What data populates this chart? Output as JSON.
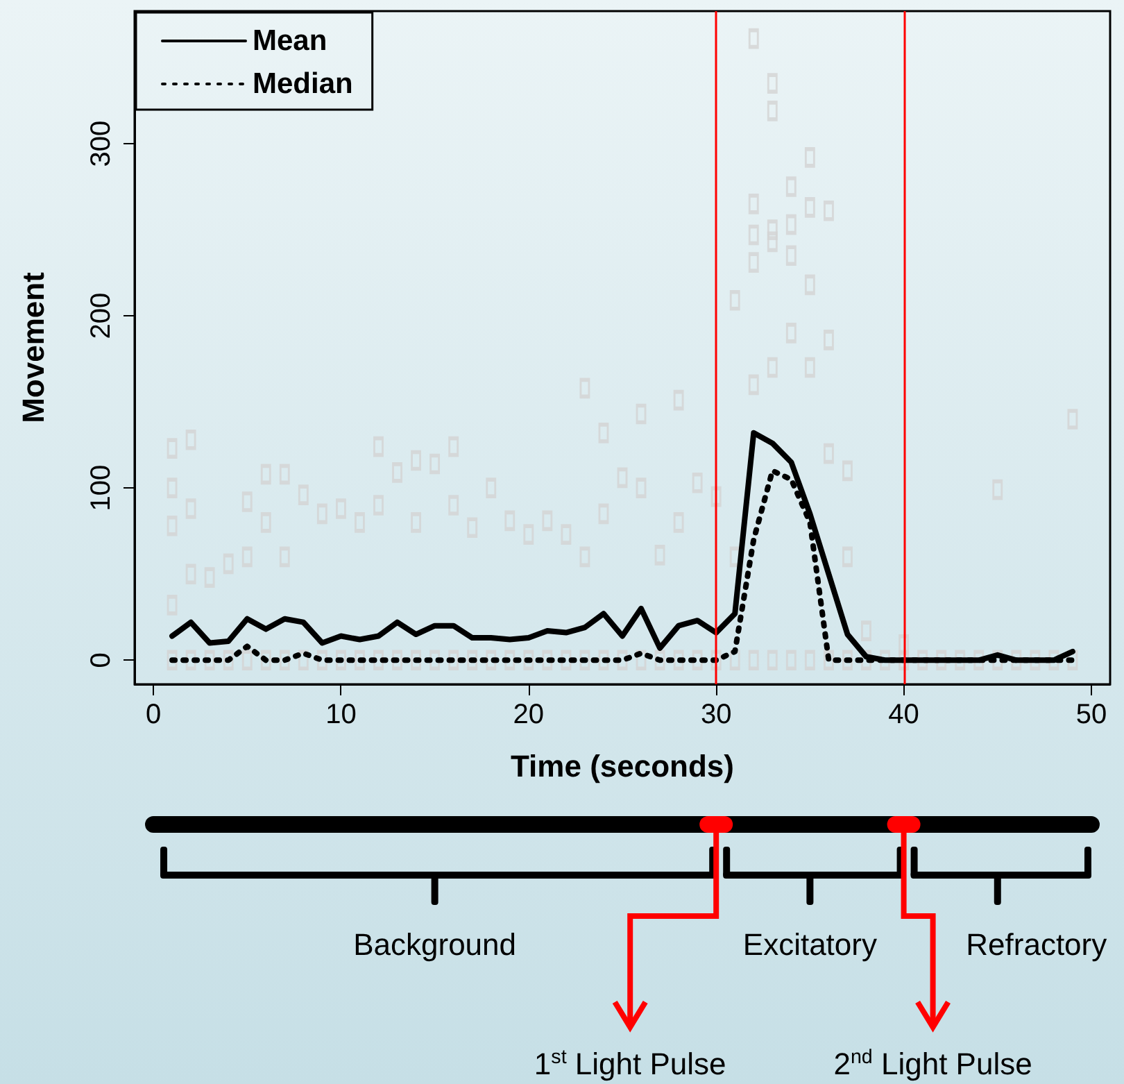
{
  "chart_data": {
    "type": "line",
    "xlabel": "Time (seconds)",
    "ylabel": "Movement",
    "xlim": [
      -1,
      51
    ],
    "xticks": [
      0,
      10,
      20,
      30,
      40,
      50
    ],
    "ylim": [
      -14,
      377
    ],
    "yticks": [
      0,
      100,
      200,
      300
    ],
    "legend": "top left",
    "marker": "none",
    "series": [
      {
        "type": "scatter",
        "marker": "square",
        "color": "#d3d3d3",
        "x": [
          1,
          1,
          1,
          1,
          2,
          2,
          2,
          3,
          4,
          5,
          5,
          6,
          6,
          7,
          7,
          8,
          9,
          10,
          11,
          12,
          12,
          13,
          14,
          14,
          15,
          16,
          16,
          17,
          18,
          19,
          20,
          21,
          22,
          23,
          23,
          24,
          24,
          25,
          26,
          26,
          27,
          28,
          28,
          29,
          30,
          31,
          31,
          32,
          32,
          32,
          32,
          32,
          33,
          33,
          33,
          33,
          33,
          34,
          34,
          34,
          34,
          35,
          35,
          35,
          35,
          36,
          36,
          36,
          37,
          37,
          38,
          40,
          45,
          49,
          1,
          2,
          3,
          4,
          5,
          6,
          7,
          8,
          9,
          10,
          11,
          12,
          13,
          14,
          15,
          16,
          17,
          18,
          19,
          20,
          21,
          22,
          23,
          24,
          25,
          26,
          27,
          28,
          29,
          30,
          31,
          32,
          33,
          34,
          35,
          36,
          37,
          38,
          39,
          40,
          41,
          42,
          43,
          44,
          45,
          46,
          47,
          48,
          49
        ],
        "values": [
          123,
          100,
          78,
          32,
          128,
          88,
          50,
          48,
          56,
          92,
          60,
          108,
          80,
          108,
          60,
          96,
          85,
          88,
          80,
          124,
          90,
          109,
          116,
          80,
          114,
          124,
          90,
          77,
          100,
          81,
          73,
          81,
          73,
          158,
          60,
          132,
          85,
          106,
          143,
          100,
          61,
          151,
          80,
          103,
          95,
          209,
          60,
          361,
          265,
          247,
          231,
          160,
          335,
          319,
          250,
          243,
          170,
          275,
          253,
          235,
          190,
          292,
          263,
          218,
          170,
          261,
          186,
          120,
          110,
          60,
          17,
          9,
          99,
          140,
          0,
          0,
          0,
          0,
          0,
          0,
          0,
          0,
          0,
          0,
          0,
          0,
          0,
          0,
          0,
          0,
          0,
          0,
          0,
          0,
          0,
          0,
          0,
          0,
          0,
          0,
          0,
          0,
          0,
          0,
          0,
          0,
          0,
          0,
          0,
          0,
          0,
          0,
          0,
          0,
          0,
          0,
          0,
          0,
          0,
          0,
          0,
          0,
          0
        ]
      },
      {
        "name": "Mean",
        "color": "#000000",
        "line_style": "solid",
        "x": [
          1,
          2,
          3,
          4,
          5,
          6,
          7,
          8,
          9,
          10,
          11,
          12,
          13,
          14,
          15,
          16,
          17,
          18,
          19,
          20,
          21,
          22,
          23,
          24,
          25,
          26,
          27,
          28,
          29,
          30,
          31,
          32,
          33,
          34,
          35,
          36,
          37,
          38,
          39,
          40,
          41,
          42,
          43,
          44,
          45,
          46,
          47,
          48,
          49
        ],
        "values": [
          14,
          22,
          10,
          11,
          24,
          18,
          24,
          22,
          10,
          14,
          12,
          14,
          22,
          15,
          20,
          20,
          13,
          13,
          12,
          13,
          17,
          16,
          19,
          27,
          14,
          30,
          7,
          20,
          23,
          16,
          27,
          132,
          126,
          115,
          85,
          50,
          15,
          2,
          0,
          0,
          0,
          0,
          0,
          0,
          3,
          0,
          0,
          0,
          5
        ]
      },
      {
        "name": "Median",
        "color": "#000000",
        "line_style": "dotted",
        "x": [
          1,
          2,
          3,
          4,
          5,
          6,
          7,
          8,
          9,
          10,
          11,
          12,
          13,
          14,
          15,
          16,
          17,
          18,
          19,
          20,
          21,
          22,
          23,
          24,
          25,
          26,
          27,
          28,
          29,
          30,
          31,
          32,
          33,
          34,
          35,
          36,
          37,
          38,
          39,
          40,
          41,
          42,
          43,
          44,
          45,
          46,
          47,
          48,
          49
        ],
        "values": [
          0,
          0,
          0,
          0,
          8,
          0,
          0,
          4,
          0,
          0,
          0,
          0,
          0,
          0,
          0,
          0,
          0,
          0,
          0,
          0,
          0,
          0,
          0,
          0,
          0,
          4,
          0,
          0,
          0,
          0,
          5,
          70,
          110,
          105,
          80,
          0,
          0,
          0,
          0,
          0,
          0,
          0,
          0,
          0,
          0,
          0,
          0,
          0,
          0
        ]
      }
    ],
    "ref_lines": [
      {
        "axis": "x",
        "value": 30,
        "color": "#ff0000"
      },
      {
        "axis": "x",
        "value": 40,
        "color": "#ff0000"
      }
    ],
    "annotations": [
      "Background",
      "Excitatory",
      "Refractory",
      "1$^{st}$ Light Pulse",
      "2$^{nd}$ Light Pulse"
    ]
  }
}
